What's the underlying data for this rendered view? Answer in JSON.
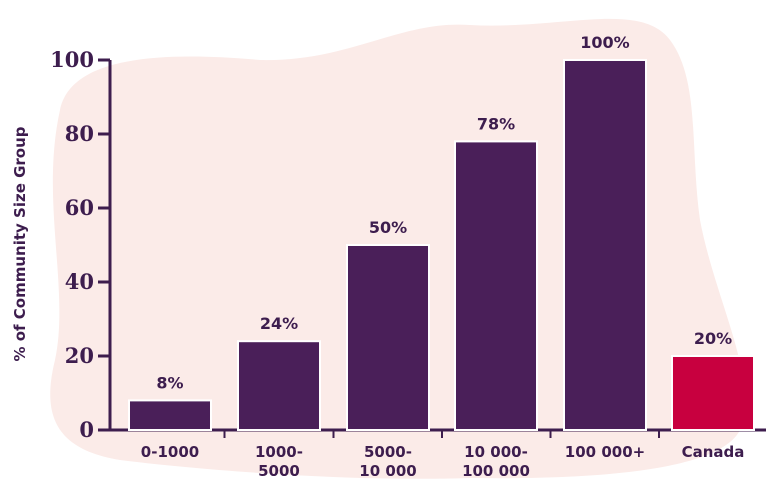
{
  "colors": {
    "bar": "#4a1f59",
    "highlight_bar": "#c8003f",
    "text": "#3d1d4e",
    "blob": "#fbebe8",
    "axis": "#3d1d4e"
  },
  "chart_data": {
    "type": "bar",
    "ylabel": "% of Community Size Group",
    "xlabel": "",
    "title": "",
    "ylim": [
      0,
      100
    ],
    "yticks": [
      "0",
      "20",
      "40",
      "60",
      "80",
      "100"
    ],
    "ytick_values": [
      0,
      20,
      40,
      60,
      80,
      100
    ],
    "categories": [
      [
        "0-1000"
      ],
      [
        "1000-",
        "5000"
      ],
      [
        "5000-",
        "10 000"
      ],
      [
        "10 000-",
        "100 000"
      ],
      [
        "100 000+"
      ],
      [
        "Canada"
      ]
    ],
    "values": [
      8,
      24,
      50,
      78,
      100,
      20
    ],
    "data_labels": [
      "8%",
      "24%",
      "50%",
      "78%",
      "100%",
      "20%"
    ],
    "highlight_index": 5,
    "grid": false,
    "legend": "none"
  }
}
